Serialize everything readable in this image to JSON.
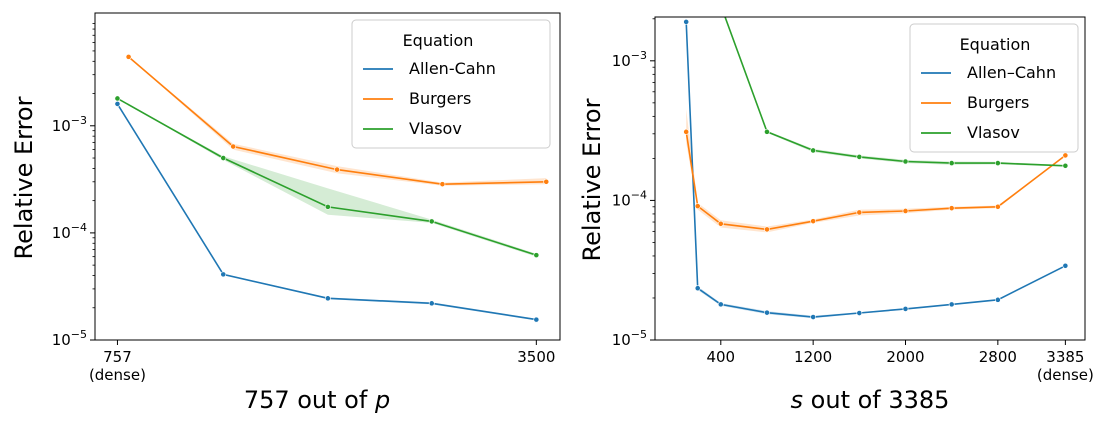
{
  "colors": {
    "allen_cahn": "#1f77b4",
    "burgers": "#ff7f0e",
    "vlasov": "#2ca02c"
  },
  "chart_data": [
    {
      "type": "line",
      "xlabel_prefix": "757 out of ",
      "xlabel_var": "p",
      "ylabel": "Relative Error",
      "yscale": "log",
      "ylim": [
        1e-05,
        0.0113
      ],
      "xlim": [
        610,
        3655
      ],
      "x_ticks": [
        {
          "value": 757,
          "label": "757",
          "sublabel": "(dense)"
        },
        {
          "value": 3500,
          "label": "3500",
          "sublabel": ""
        }
      ],
      "y_ticks": [
        {
          "value": 1e-05,
          "base": "10",
          "exp": "−5"
        },
        {
          "value": 0.0001,
          "base": "10",
          "exp": "−4"
        },
        {
          "value": 0.001,
          "base": "10",
          "exp": "−3"
        }
      ],
      "legend": {
        "title": "Equation",
        "position": "top-right"
      },
      "series": [
        {
          "name": "Allen-Cahn",
          "color_key": "allen_cahn",
          "x": [
            757,
            1450,
            2135,
            2815,
            3500
          ],
          "y": [
            0.0016,
            4.1e-05,
            2.45e-05,
            2.2e-05,
            1.55e-05
          ],
          "lo": [
            0.0016,
            4.05e-05,
            2.4e-05,
            2.15e-05,
            1.52e-05
          ],
          "hi": [
            0.0016,
            4.15e-05,
            2.5e-05,
            2.25e-05,
            1.58e-05
          ]
        },
        {
          "name": "Burgers",
          "color_key": "burgers",
          "x": [
            830,
            1515,
            2195,
            2885,
            3565
          ],
          "y": [
            0.0044,
            0.00064,
            0.00039,
            0.000285,
            0.0003
          ],
          "lo": [
            0.0044,
            0.0006,
            0.00036,
            0.000275,
            0.000285
          ],
          "hi": [
            0.0044,
            0.00068,
            0.00042,
            0.000295,
            0.000325
          ]
        },
        {
          "name": "Vlasov",
          "color_key": "vlasov",
          "x": [
            757,
            1450,
            2135,
            2815,
            3500
          ],
          "y": [
            0.0018,
            0.0005,
            0.000175,
            0.000128,
            6.2e-05
          ],
          "lo": [
            0.0018,
            0.00048,
            0.000148,
            0.000124,
            6e-05
          ],
          "hi": [
            0.0018,
            0.00052,
            0.00026,
            0.000133,
            6.4e-05
          ]
        }
      ]
    },
    {
      "type": "line",
      "xlabel_var": "s",
      "xlabel_suffix": " out of 3385",
      "ylabel": "Relative Error",
      "yscale": "log",
      "ylim": [
        1e-05,
        0.00206
      ],
      "xlim": [
        -170,
        3555
      ],
      "x_ticks": [
        {
          "value": 400,
          "label": "400",
          "sublabel": ""
        },
        {
          "value": 1200,
          "label": "1200",
          "sublabel": ""
        },
        {
          "value": 2000,
          "label": "2000",
          "sublabel": ""
        },
        {
          "value": 2800,
          "label": "2800",
          "sublabel": ""
        },
        {
          "value": 3385,
          "label": "3385",
          "sublabel": "(dense)"
        }
      ],
      "y_ticks": [
        {
          "value": 1e-05,
          "base": "10",
          "exp": "−5"
        },
        {
          "value": 0.0001,
          "base": "10",
          "exp": "−4"
        },
        {
          "value": 0.001,
          "base": "10",
          "exp": "−3"
        }
      ],
      "legend": {
        "title": "Equation",
        "position": "top-right"
      },
      "series": [
        {
          "name": "Allen–Cahn",
          "color_key": "allen_cahn",
          "x": [
            100,
            200,
            400,
            800,
            1200,
            1600,
            2000,
            2400,
            2800,
            3385
          ],
          "y": [
            0.0019,
            2.35e-05,
            1.8e-05,
            1.57e-05,
            1.46e-05,
            1.56e-05,
            1.67e-05,
            1.8e-05,
            1.94e-05,
            3.4e-05
          ],
          "lo": [
            0.0019,
            2.28e-05,
            1.76e-05,
            1.53e-05,
            1.43e-05,
            1.54e-05,
            1.65e-05,
            1.78e-05,
            1.92e-05,
            3.4e-05
          ],
          "hi": [
            0.0019,
            2.42e-05,
            1.84e-05,
            1.61e-05,
            1.49e-05,
            1.58e-05,
            1.69e-05,
            1.82e-05,
            1.96e-05,
            3.4e-05
          ]
        },
        {
          "name": "Burgers",
          "color_key": "burgers",
          "x": [
            100,
            200,
            400,
            800,
            1200,
            1600,
            2000,
            2400,
            2800,
            3385
          ],
          "y": [
            0.00031,
            9.1e-05,
            6.8e-05,
            6.2e-05,
            7.1e-05,
            8.2e-05,
            8.4e-05,
            8.8e-05,
            9e-05,
            0.00021
          ],
          "lo": [
            0.00026,
            8.6e-05,
            6.4e-05,
            5.9e-05,
            6.9e-05,
            7.8e-05,
            8.1e-05,
            8.6e-05,
            8.8e-05,
            0.00021
          ],
          "hi": [
            0.00045,
            9.6e-05,
            7.2e-05,
            6.5e-05,
            7.3e-05,
            8.6e-05,
            8.7e-05,
            9e-05,
            9.2e-05,
            0.00021
          ]
        },
        {
          "name": "Vlasov",
          "color_key": "vlasov",
          "x": [
            400,
            800,
            1200,
            1600,
            2000,
            2400,
            2800,
            3385
          ],
          "y": [
            0.0025,
            0.00031,
            0.000228,
            0.000205,
            0.00019,
            0.000185,
            0.000185,
            0.000177
          ],
          "lo": [
            0.0025,
            0.000305,
            0.000222,
            0.0002,
            0.000185,
            0.00018,
            0.000181,
            0.000175
          ],
          "hi": [
            0.0025,
            0.000315,
            0.000234,
            0.00021,
            0.000195,
            0.00019,
            0.000189,
            0.000179
          ]
        }
      ]
    }
  ]
}
